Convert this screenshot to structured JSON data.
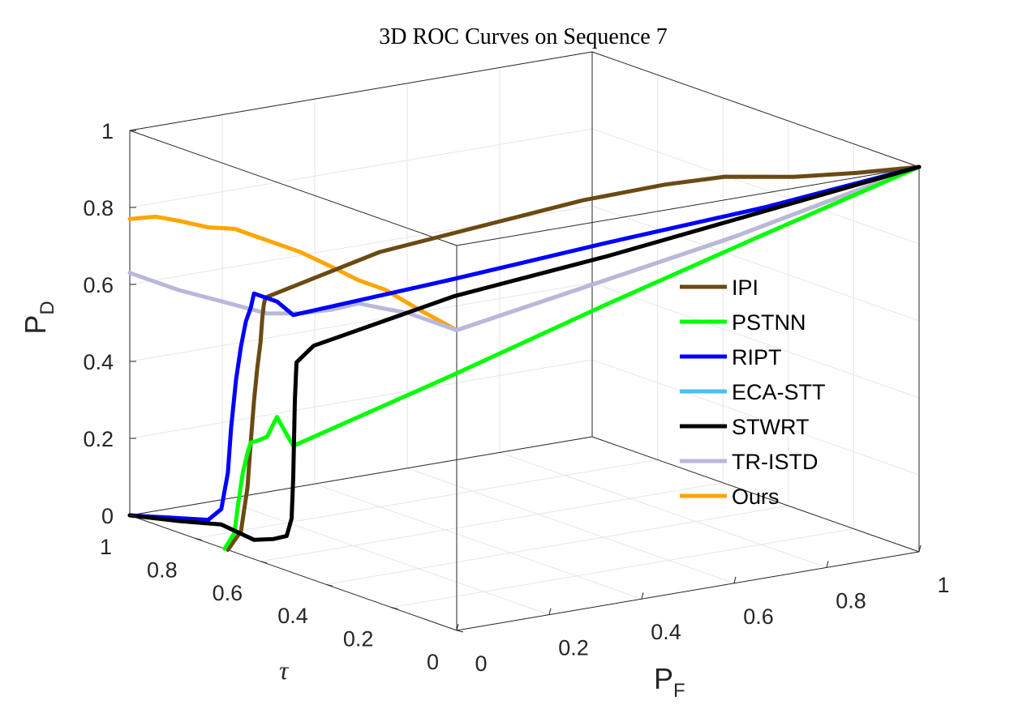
{
  "chart_data": {
    "type": "line",
    "projection": "3d",
    "title": "3D ROC Curves on Sequence 7",
    "axes": {
      "pf": {
        "label_main": "P",
        "label_sub": "F",
        "range": [
          0,
          1
        ],
        "ticks": [
          "0",
          "0.2",
          "0.4",
          "0.6",
          "0.8",
          "1"
        ]
      },
      "tau": {
        "label": "τ",
        "range": [
          0,
          1
        ],
        "ticks": [
          "0",
          "0.2",
          "0.4",
          "0.6",
          "0.8",
          "1"
        ]
      },
      "pd": {
        "label_main": "P",
        "label_sub": "D",
        "range": [
          0,
          1
        ],
        "ticks": [
          "0",
          "0.2",
          "0.4",
          "0.6",
          "0.8",
          "1"
        ]
      }
    },
    "grid": true,
    "legend_position": "right",
    "series": [
      {
        "name": "IPI",
        "color": "#6b4a12",
        "points": [
          [
            0,
            0.7,
            0
          ],
          [
            0,
            0.66,
            0.06
          ],
          [
            0,
            0.64,
            0.18
          ],
          [
            0,
            0.63,
            0.3
          ],
          [
            0,
            0.62,
            0.41
          ],
          [
            0,
            0.61,
            0.5
          ],
          [
            0,
            0.6,
            0.57
          ],
          [
            0,
            0.595,
            0.63
          ],
          [
            0,
            0.59,
            0.67
          ],
          [
            0,
            0.585,
            0.69
          ],
          [
            0.18,
            0.49,
            0.8
          ],
          [
            0.36,
            0.39,
            0.87
          ],
          [
            0.5,
            0.32,
            0.92
          ],
          [
            0.62,
            0.24,
            0.96
          ],
          [
            0.7,
            0.17,
            0.985
          ],
          [
            0.8,
            0.1,
            0.985
          ],
          [
            0.9,
            0.05,
            0.99
          ],
          [
            1,
            0,
            1
          ]
        ]
      },
      {
        "name": "PSTNN",
        "color": "#00ff00",
        "points": [
          [
            0,
            0.71,
            0
          ],
          [
            0,
            0.68,
            0.05
          ],
          [
            0,
            0.67,
            0.12
          ],
          [
            0,
            0.655,
            0.21
          ],
          [
            0,
            0.64,
            0.27
          ],
          [
            0,
            0.63,
            0.3
          ],
          [
            0,
            0.61,
            0.31
          ],
          [
            0,
            0.58,
            0.33
          ],
          [
            0,
            0.55,
            0.39
          ],
          [
            0,
            0.525,
            0.36
          ],
          [
            0,
            0.5,
            0.33
          ],
          [
            0.25,
            0.37,
            0.5
          ],
          [
            0.5,
            0.25,
            0.67
          ],
          [
            0.75,
            0.12,
            0.84
          ],
          [
            1,
            0,
            1
          ]
        ]
      },
      {
        "name": "RIPT",
        "color": "#0000ff",
        "points": [
          [
            0,
            1,
            0
          ],
          [
            0,
            0.88,
            0.03
          ],
          [
            0,
            0.76,
            0.06
          ],
          [
            0,
            0.72,
            0.1
          ],
          [
            0,
            0.7,
            0.2
          ],
          [
            0,
            0.69,
            0.32
          ],
          [
            0,
            0.675,
            0.45
          ],
          [
            0,
            0.66,
            0.54
          ],
          [
            0,
            0.645,
            0.61
          ],
          [
            0,
            0.63,
            0.65
          ],
          [
            0,
            0.62,
            0.69
          ],
          [
            0,
            0.59,
            0.69
          ],
          [
            0,
            0.55,
            0.69
          ],
          [
            0,
            0.5,
            0.67
          ],
          [
            0.25,
            0.37,
            0.75
          ],
          [
            0.5,
            0.25,
            0.83
          ],
          [
            0.75,
            0.12,
            0.91
          ],
          [
            1,
            0,
            1
          ]
        ]
      },
      {
        "name": "ECA-STT",
        "color": "#4dbeee",
        "points": []
      },
      {
        "name": "STWRT",
        "color": "#000000",
        "points": [
          [
            0,
            1,
            0
          ],
          [
            0,
            0.85,
            0.03
          ],
          [
            0,
            0.72,
            0.06
          ],
          [
            0,
            0.62,
            0.05
          ],
          [
            0,
            0.56,
            0.07
          ],
          [
            0,
            0.52,
            0.09
          ],
          [
            0,
            0.505,
            0.14
          ],
          [
            0,
            0.5,
            0.25
          ],
          [
            0,
            0.495,
            0.45
          ],
          [
            0,
            0.49,
            0.55
          ],
          [
            0.03,
            0.48,
            0.59
          ],
          [
            0.25,
            0.36,
            0.71
          ],
          [
            0.5,
            0.24,
            0.8
          ],
          [
            0.75,
            0.12,
            0.9
          ],
          [
            1,
            0,
            1
          ]
        ]
      },
      {
        "name": "TR-ISTD",
        "color": "#b8b8dc",
        "points": [
          [
            0,
            1,
            0.63
          ],
          [
            0,
            0.85,
            0.63
          ],
          [
            0,
            0.72,
            0.64
          ],
          [
            0,
            0.58,
            0.65
          ],
          [
            0,
            0.48,
            0.68
          ],
          [
            0,
            0.38,
            0.72
          ],
          [
            0,
            0.3,
            0.76
          ],
          [
            0,
            0.22,
            0.77
          ],
          [
            0,
            0.15,
            0.78
          ],
          [
            0,
            0.08,
            0.78
          ],
          [
            0,
            0,
            0.78
          ],
          [
            0.2,
            0,
            0.82
          ],
          [
            0.4,
            0,
            0.86
          ],
          [
            0.6,
            0,
            0.9
          ],
          [
            0.8,
            0,
            0.95
          ],
          [
            1,
            0,
            1
          ]
        ]
      },
      {
        "name": "Ours",
        "color": "#ffa500",
        "points": [
          [
            0,
            1,
            0.77
          ],
          [
            0,
            0.92,
            0.8
          ],
          [
            0,
            0.85,
            0.81
          ],
          [
            0,
            0.76,
            0.82
          ],
          [
            0,
            0.68,
            0.84
          ],
          [
            0,
            0.58,
            0.84
          ],
          [
            0,
            0.48,
            0.84
          ],
          [
            0,
            0.38,
            0.83
          ],
          [
            0,
            0.3,
            0.82
          ],
          [
            0,
            0.22,
            0.82
          ],
          [
            0,
            0.12,
            0.8
          ],
          [
            0,
            0.06,
            0.79
          ],
          [
            0,
            0,
            0.78
          ],
          [
            0.2,
            0,
            0.82
          ],
          [
            0.4,
            0,
            0.86
          ],
          [
            0.6,
            0,
            0.9
          ],
          [
            0.8,
            0,
            0.95
          ],
          [
            1,
            0,
            1
          ]
        ]
      }
    ]
  }
}
